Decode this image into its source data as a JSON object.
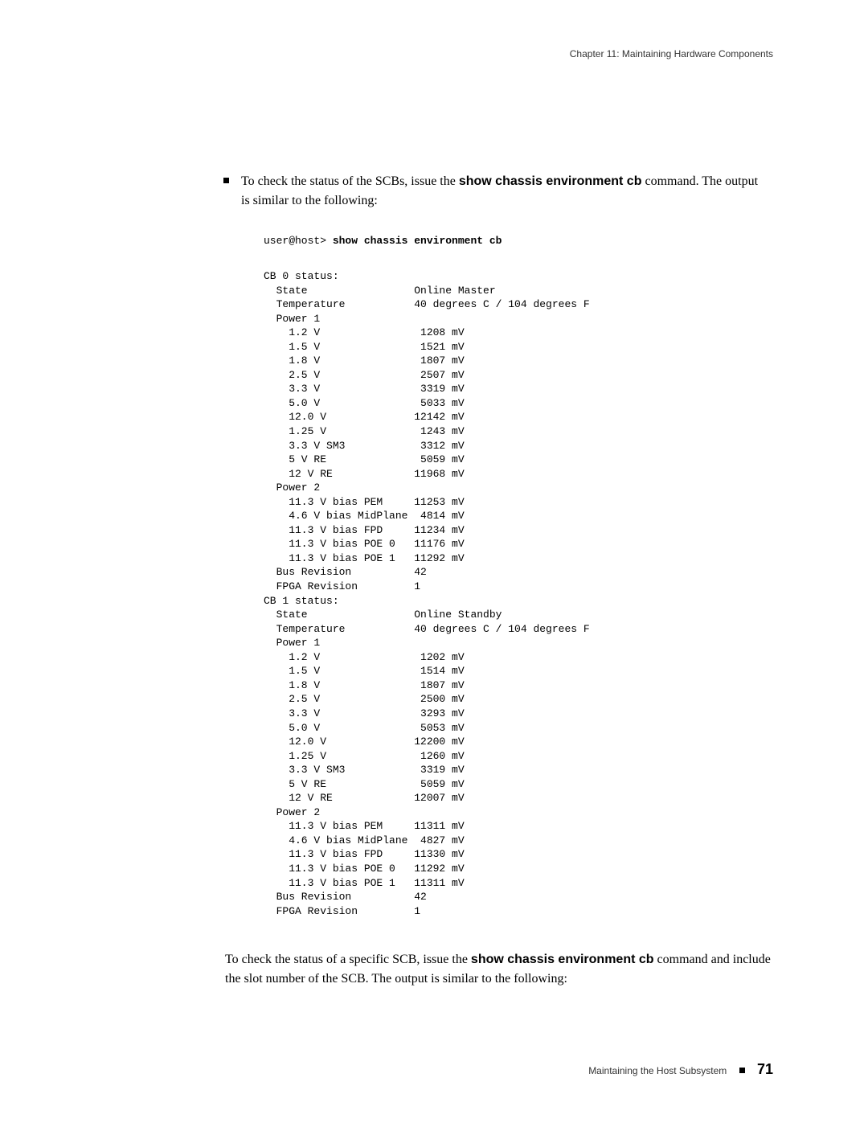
{
  "header": {
    "chapter": "Chapter 11: Maintaining Hardware Components"
  },
  "bullet": {
    "pre": "To check the status of the SCBs, issue the ",
    "cmd": "show chassis environment cb",
    "post": " command. The output is similar to the following:"
  },
  "command": {
    "prompt": "user@host> ",
    "text": "show chassis environment cb"
  },
  "cb0": {
    "heading": "CB 0 status:",
    "state_label": "State",
    "state_value": "Online Master",
    "temp_label": "Temperature",
    "temp_value": "40 degrees C / 104 degrees F",
    "power1_label": "Power 1",
    "p1": [
      {
        "label": "1.2 V",
        "value": "1208 mV"
      },
      {
        "label": "1.5 V",
        "value": "1521 mV"
      },
      {
        "label": "1.8 V",
        "value": "1807 mV"
      },
      {
        "label": "2.5 V",
        "value": "2507 mV"
      },
      {
        "label": "3.3 V",
        "value": "3319 mV"
      },
      {
        "label": "5.0 V",
        "value": "5033 mV"
      },
      {
        "label": "12.0 V",
        "value": "12142 mV"
      },
      {
        "label": "1.25 V",
        "value": "1243 mV"
      },
      {
        "label": "3.3 V SM3",
        "value": "3312 mV"
      },
      {
        "label": "5 V RE",
        "value": "5059 mV"
      },
      {
        "label": "12 V RE",
        "value": "11968 mV"
      }
    ],
    "power2_label": "Power 2",
    "p2": [
      {
        "label": "11.3 V bias PEM",
        "value": "11253 mV"
      },
      {
        "label": "4.6 V bias MidPlane",
        "value": "4814 mV"
      },
      {
        "label": "11.3 V bias FPD",
        "value": "11234 mV"
      },
      {
        "label": "11.3 V bias POE 0",
        "value": "11176 mV"
      },
      {
        "label": "11.3 V bias POE 1",
        "value": "11292 mV"
      }
    ],
    "bus_label": "Bus Revision",
    "bus_value": "42",
    "fpga_label": "FPGA Revision",
    "fpga_value": "1"
  },
  "cb1": {
    "heading": "CB 1 status:",
    "state_label": "State",
    "state_value": "Online Standby",
    "temp_label": "Temperature",
    "temp_value": "40 degrees C / 104 degrees F",
    "power1_label": "Power 1",
    "p1": [
      {
        "label": "1.2 V",
        "value": "1202 mV"
      },
      {
        "label": "1.5 V",
        "value": "1514 mV"
      },
      {
        "label": "1.8 V",
        "value": "1807 mV"
      },
      {
        "label": "2.5 V",
        "value": "2500 mV"
      },
      {
        "label": "3.3 V",
        "value": "3293 mV"
      },
      {
        "label": "5.0 V",
        "value": "5053 mV"
      },
      {
        "label": "12.0 V",
        "value": "12200 mV"
      },
      {
        "label": "1.25 V",
        "value": "1260 mV"
      },
      {
        "label": "3.3 V SM3",
        "value": "3319 mV"
      },
      {
        "label": "5 V RE",
        "value": "5059 mV"
      },
      {
        "label": "12 V RE",
        "value": "12007 mV"
      }
    ],
    "power2_label": "Power 2",
    "p2": [
      {
        "label": "11.3 V bias PEM",
        "value": "11311 mV"
      },
      {
        "label": "4.6 V bias MidPlane",
        "value": "4827 mV"
      },
      {
        "label": "11.3 V bias FPD",
        "value": "11330 mV"
      },
      {
        "label": "11.3 V bias POE 0",
        "value": "11292 mV"
      },
      {
        "label": "11.3 V bias POE 1",
        "value": "11311 mV"
      }
    ],
    "bus_label": "Bus Revision",
    "bus_value": "42",
    "fpga_label": "FPGA Revision",
    "fpga_value": "1"
  },
  "footer_para": {
    "pre": "To check the status of a specific SCB, issue the ",
    "cmd": "show chassis environment cb",
    "post": " command and include the slot number of the SCB. The output is similar to the following:"
  },
  "footer": {
    "section": "Maintaining the Host Subsystem",
    "page": "71"
  },
  "style": {
    "font_mono": "Courier New",
    "font_body": "Georgia",
    "font_sans": "Arial",
    "text_color": "#000000",
    "header_color": "#333333",
    "bg": "#ffffff",
    "label_col_chars": 24,
    "value_right_align_chars": 5,
    "indent_l1_chars": 2,
    "indent_l2_chars": 4
  }
}
